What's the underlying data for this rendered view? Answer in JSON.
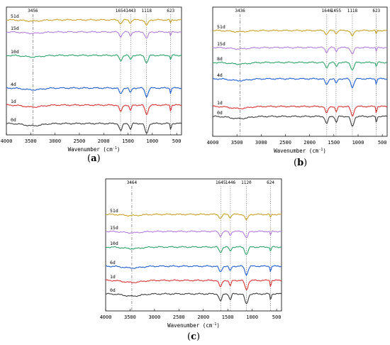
{
  "chart_data": [
    {
      "panel_label": "a",
      "type": "line",
      "xlabel": "Wavenumber",
      "xunit": "cm",
      "xunit_power": "-1",
      "xlim": [
        4000,
        400
      ],
      "xticks": [
        4000,
        3500,
        3000,
        2500,
        2000,
        1500,
        1000,
        500
      ],
      "peaks": [
        {
          "label": "3456",
          "x": 3456
        },
        {
          "label": "1654",
          "x": 1654
        },
        {
          "label": "1443",
          "x": 1443
        },
        {
          "label": "1118",
          "x": 1118
        },
        {
          "label": "623",
          "x": 623
        }
      ],
      "series": [
        {
          "name": "51d",
          "color": "#c9a227"
        },
        {
          "name": "15d",
          "color": "#b57ede"
        },
        {
          "name": "10d",
          "color": "#2ea36a"
        },
        {
          "name": "4d",
          "color": "#1f5fcf"
        },
        {
          "name": "1d",
          "color": "#d93333"
        },
        {
          "name": "0d",
          "color": "#3d3d3d"
        }
      ]
    },
    {
      "panel_label": "b",
      "type": "line",
      "xlabel": "Wavenumber",
      "xunit": "cm",
      "xunit_power": "-1",
      "xlim": [
        4000,
        400
      ],
      "xticks": [
        4000,
        3500,
        3000,
        2500,
        2000,
        1500,
        1000,
        500
      ],
      "peaks": [
        {
          "label": "3436",
          "x": 3436
        },
        {
          "label": "1646",
          "x": 1646
        },
        {
          "label": "1455",
          "x": 1455
        },
        {
          "label": "1118",
          "x": 1118
        },
        {
          "label": "623",
          "x": 623
        }
      ],
      "series": [
        {
          "name": "51d",
          "color": "#c9a227"
        },
        {
          "name": "15d",
          "color": "#b57ede"
        },
        {
          "name": "8d",
          "color": "#2ea36a"
        },
        {
          "name": "4d",
          "color": "#1f5fcf"
        },
        {
          "name": "1d",
          "color": "#d93333"
        },
        {
          "name": "0d",
          "color": "#3d3d3d"
        }
      ]
    },
    {
      "panel_label": "c",
      "type": "line",
      "xlabel": "Wavenumber",
      "xunit": "cm",
      "xunit_power": "-1",
      "xlim": [
        4000,
        400
      ],
      "xticks": [
        4000,
        3500,
        3000,
        2500,
        2000,
        1500,
        1000,
        500
      ],
      "peaks": [
        {
          "label": "3464",
          "x": 3464
        },
        {
          "label": "1645",
          "x": 1645
        },
        {
          "label": "1446",
          "x": 1446
        },
        {
          "label": "1120",
          "x": 1120
        },
        {
          "label": "624",
          "x": 624
        }
      ],
      "series": [
        {
          "name": "51d",
          "color": "#c9a227"
        },
        {
          "name": "15d",
          "color": "#b57ede"
        },
        {
          "name": "10d",
          "color": "#2ea36a"
        },
        {
          "name": "6d",
          "color": "#1f5fcf"
        },
        {
          "name": "1d",
          "color": "#d93333"
        },
        {
          "name": "0d",
          "color": "#3d3d3d"
        }
      ]
    }
  ]
}
